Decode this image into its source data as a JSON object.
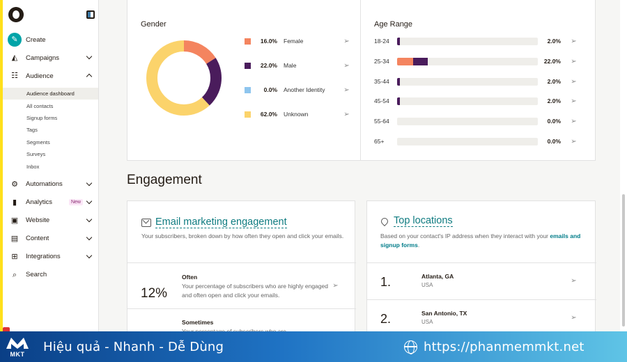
{
  "sidebar": {
    "nav": [
      {
        "label": "Create",
        "icon": "pencil-icon"
      },
      {
        "label": "Campaigns",
        "icon": "megaphone-icon",
        "chevron": "down"
      },
      {
        "label": "Audience",
        "icon": "people-icon",
        "chevron": "up"
      }
    ],
    "audience_sub": [
      "Audience dashboard",
      "All contacts",
      "Signup forms",
      "Tags",
      "Segments",
      "Surveys",
      "Inbox"
    ],
    "nav2": [
      {
        "label": "Automations",
        "icon": "automation-icon"
      },
      {
        "label": "Analytics",
        "icon": "bar-chart-icon",
        "badge": "New"
      },
      {
        "label": "Website",
        "icon": "website-icon"
      },
      {
        "label": "Content",
        "icon": "content-icon"
      },
      {
        "label": "Integrations",
        "icon": "grid-icon"
      }
    ],
    "search_label": "Search"
  },
  "gender": {
    "title": "Gender",
    "items": [
      {
        "pct": "16.0%",
        "label": "Female",
        "value": 16.0,
        "color": "#f4845f"
      },
      {
        "pct": "22.0%",
        "label": "Male",
        "value": 22.0,
        "color": "#4a1c5c"
      },
      {
        "pct": "0.0%",
        "label": "Another Identity",
        "value": 0.0,
        "color": "#8ec5ee"
      },
      {
        "pct": "62.0%",
        "label": "Unknown",
        "value": 62.0,
        "color": "#fbd36b"
      }
    ]
  },
  "age": {
    "title": "Age Range",
    "rows": [
      {
        "label": "18-24",
        "pct": "2.0%",
        "value": 2.0
      },
      {
        "label": "25-34",
        "pct": "22.0%",
        "value": 22.0,
        "split": [
          11.5,
          10.5
        ]
      },
      {
        "label": "35-44",
        "pct": "2.0%",
        "value": 2.0
      },
      {
        "label": "45-54",
        "pct": "2.0%",
        "value": 2.0
      },
      {
        "label": "55-64",
        "pct": "0.0%",
        "value": 0.0
      },
      {
        "label": "65+",
        "pct": "0.0%",
        "value": 0.0
      }
    ]
  },
  "engagement": {
    "section_title": "Engagement",
    "card_title": "Email marketing engagement",
    "card_desc": "Your subscribers, broken down by how often they open and click your emails.",
    "rows": [
      {
        "value": "12%",
        "label": "Often",
        "desc": "Your percentage of subscribers who are highly engaged and often open and click your emails."
      },
      {
        "value": "",
        "label": "Sometimes",
        "desc": "Your percentage of subscribers who are"
      }
    ]
  },
  "locations": {
    "title": "Top locations",
    "desc_prefix": "Based on your contact's IP address when they interact with your",
    "desc_link": "emails and signup forms",
    "desc_suffix": ".",
    "items": [
      {
        "rank": "1.",
        "city": "Atlanta, GA",
        "country": "USA"
      },
      {
        "rank": "2.",
        "city": "San Antonio, TX",
        "country": "USA"
      }
    ]
  },
  "banner": {
    "logo_text": "MKT",
    "slogan": "Hiệu quả - Nhanh - Dễ Dùng",
    "url": "https://phanmemmkt.net"
  }
}
